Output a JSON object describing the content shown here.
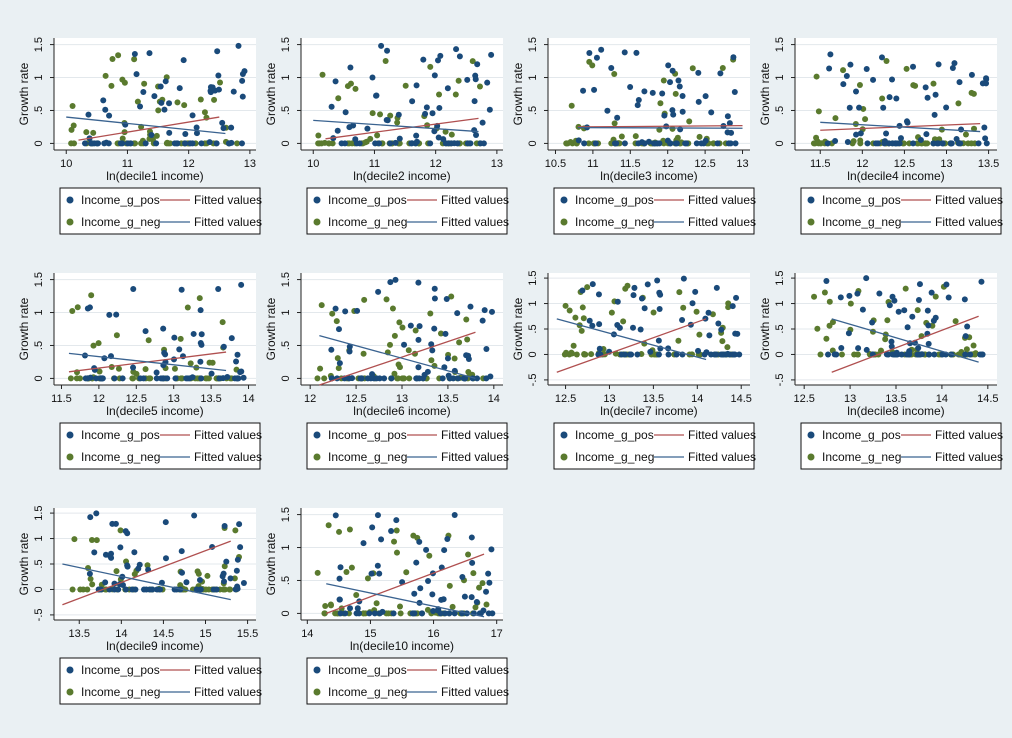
{
  "colors": {
    "background": "#eaf0f3",
    "plot_region": "#ffffff",
    "pos": "#1a4a7a",
    "neg": "#5a7a2e",
    "fit_pos": "#b05050",
    "fit_neg": "#3a6390"
  },
  "legend": {
    "pos_label": "Income_g_pos",
    "neg_label": "Income_g_neg",
    "fit_label": "Fitted values"
  },
  "chart_data": [
    {
      "type": "scatter",
      "xlabel": "ln(decile1 income)",
      "ylabel": "Growth rate",
      "xlim": [
        9.8,
        13.1
      ],
      "ylim": [
        -0.1,
        1.6
      ],
      "xticks": [
        "10",
        "11",
        "12",
        "13"
      ],
      "yticks": [
        "0",
        ".5",
        "1",
        "1.5"
      ],
      "fit_pos": [
        [
          10.2,
          0.05
        ],
        [
          12.5,
          0.4
        ]
      ],
      "fit_neg": [
        [
          10.0,
          0.4
        ],
        [
          12.6,
          0.15
        ]
      ]
    },
    {
      "type": "scatter",
      "xlabel": "ln(decile2 income)",
      "ylabel": "Growth rate",
      "xlim": [
        9.8,
        13.1
      ],
      "ylim": [
        -0.1,
        1.6
      ],
      "xticks": [
        "10",
        "11",
        "12",
        "13"
      ],
      "yticks": [
        "0",
        ".5",
        "1",
        "1.5"
      ],
      "fit_pos": [
        [
          10.2,
          0.07
        ],
        [
          12.7,
          0.38
        ]
      ],
      "fit_neg": [
        [
          10.0,
          0.35
        ],
        [
          12.7,
          0.18
        ]
      ]
    },
    {
      "type": "scatter",
      "xlabel": "ln(decile3 income)",
      "ylabel": "Growth rate",
      "xlim": [
        10.4,
        13.1
      ],
      "ylim": [
        -0.1,
        1.6
      ],
      "xticks": [
        "10.5",
        "11",
        "11.5",
        "12",
        "12.5",
        "13"
      ],
      "yticks": [
        "0",
        ".5",
        "1",
        "1.5"
      ],
      "fit_pos": [
        [
          10.8,
          0.25
        ],
        [
          13.0,
          0.27
        ]
      ],
      "fit_neg": [
        [
          10.8,
          0.24
        ],
        [
          13.0,
          0.23
        ]
      ]
    },
    {
      "type": "scatter",
      "xlabel": "ln(decile4 income)",
      "ylabel": "Growth rate",
      "xlim": [
        11.2,
        13.6
      ],
      "ylim": [
        -0.1,
        1.6
      ],
      "xticks": [
        "11.5",
        "12",
        "12.5",
        "13",
        "13.5"
      ],
      "yticks": [
        "0",
        ".5",
        "1",
        "1.5"
      ],
      "fit_pos": [
        [
          11.5,
          0.2
        ],
        [
          13.4,
          0.3
        ]
      ],
      "fit_neg": [
        [
          11.5,
          0.32
        ],
        [
          13.4,
          0.18
        ]
      ]
    },
    {
      "type": "scatter",
      "xlabel": "ln(decile5 income)",
      "ylabel": "Growth rate",
      "xlim": [
        11.4,
        14.1
      ],
      "ylim": [
        -0.1,
        1.6
      ],
      "xticks": [
        "11.5",
        "12",
        "12.5",
        "13",
        "13.5",
        "14"
      ],
      "yticks": [
        "0",
        ".5",
        "1",
        "1.5"
      ],
      "fit_pos": [
        [
          11.6,
          0.1
        ],
        [
          13.7,
          0.4
        ]
      ],
      "fit_neg": [
        [
          11.6,
          0.38
        ],
        [
          13.7,
          0.12
        ]
      ]
    },
    {
      "type": "scatter",
      "xlabel": "ln(decile6 income)",
      "ylabel": "Growth rate",
      "xlim": [
        11.9,
        14.1
      ],
      "ylim": [
        -0.1,
        1.6
      ],
      "xticks": [
        "12",
        "12.5",
        "13",
        "13.5",
        "14"
      ],
      "yticks": [
        "0",
        ".5",
        "1",
        "1.5"
      ],
      "fit_pos": [
        [
          12.1,
          -0.1
        ],
        [
          13.8,
          0.7
        ]
      ],
      "fit_neg": [
        [
          12.1,
          0.65
        ],
        [
          13.8,
          0.0
        ]
      ]
    },
    {
      "type": "scatter",
      "xlabel": "ln(decile7 income)",
      "ylabel": "Growth rate",
      "xlim": [
        12.3,
        14.6
      ],
      "ylim": [
        -0.6,
        1.6
      ],
      "xticks": [
        "12.5",
        "13",
        "13.5",
        "14",
        "14.5"
      ],
      "yticks": [
        "-.5",
        "0",
        ".5",
        "1",
        "1.5"
      ],
      "fit_pos": [
        [
          12.4,
          -0.35
        ],
        [
          14.1,
          0.7
        ]
      ],
      "fit_neg": [
        [
          12.4,
          0.7
        ],
        [
          14.1,
          -0.1
        ]
      ]
    },
    {
      "type": "scatter",
      "xlabel": "ln(decile8 income)",
      "ylabel": "Growth rate",
      "xlim": [
        12.4,
        14.6
      ],
      "ylim": [
        -0.6,
        1.6
      ],
      "xticks": [
        "12.5",
        "13",
        "13.5",
        "14",
        "14.5"
      ],
      "yticks": [
        "-.5",
        "0",
        ".5",
        "1",
        "1.5"
      ],
      "fit_pos": [
        [
          12.8,
          -0.35
        ],
        [
          14.4,
          0.75
        ]
      ],
      "fit_neg": [
        [
          12.8,
          0.7
        ],
        [
          14.4,
          -0.15
        ]
      ]
    },
    {
      "type": "scatter",
      "xlabel": "ln(decile9 income)",
      "ylabel": "Growth rate",
      "xlim": [
        13.2,
        15.6
      ],
      "ylim": [
        -0.6,
        1.6
      ],
      "xticks": [
        "13.5",
        "14",
        "14.5",
        "15",
        "15.5"
      ],
      "yticks": [
        "-.5",
        "0",
        ".5",
        "1",
        "1.5"
      ],
      "fit_pos": [
        [
          13.3,
          -0.3
        ],
        [
          15.3,
          0.95
        ]
      ],
      "fit_neg": [
        [
          13.3,
          0.5
        ],
        [
          15.3,
          -0.2
        ]
      ]
    },
    {
      "type": "scatter",
      "xlabel": "ln(decile10 income)",
      "ylabel": "Growth rate",
      "xlim": [
        13.9,
        17.1
      ],
      "ylim": [
        -0.1,
        1.6
      ],
      "xticks": [
        "14",
        "15",
        "16",
        "17"
      ],
      "yticks": [
        "0",
        ".5",
        "1",
        "1.5"
      ],
      "fit_pos": [
        [
          14.3,
          0.0
        ],
        [
          16.8,
          0.9
        ]
      ],
      "fit_neg": [
        [
          14.3,
          0.45
        ],
        [
          16.8,
          -0.05
        ]
      ]
    }
  ]
}
